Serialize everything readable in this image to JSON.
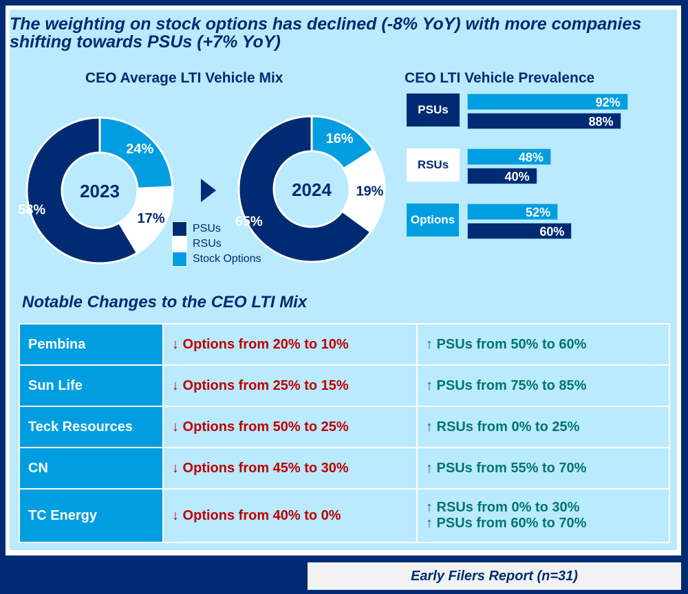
{
  "headline": "The weighting on stock options has declined (-8% YoY) with more companies shifting towards PSUs (+7% YoY)",
  "colors": {
    "psus": "#002b73",
    "rsus": "#ffffff",
    "options": "#009ee0",
    "background": "#b9eafd",
    "down": "#c00000",
    "up": "#00766b"
  },
  "chart_data": [
    {
      "type": "pie",
      "title": "CEO Average LTI Vehicle Mix",
      "center_label": "2023",
      "categories": [
        "Stock Options",
        "RSUs",
        "PSUs"
      ],
      "values": [
        24,
        17,
        58
      ],
      "labels": [
        "24%",
        "17%",
        "58%"
      ]
    },
    {
      "type": "pie",
      "title": "",
      "center_label": "2024",
      "categories": [
        "Stock Options",
        "RSUs",
        "PSUs"
      ],
      "values": [
        16,
        19,
        65
      ],
      "labels": [
        "16%",
        "19%",
        "65%"
      ]
    },
    {
      "type": "bar",
      "orientation": "horizontal",
      "title": "CEO LTI Vehicle Prevalence",
      "categories": [
        "PSUs",
        "RSUs",
        "Options"
      ],
      "series": [
        {
          "values": [
            92,
            48,
            52
          ],
          "labels": [
            "92%",
            "48%",
            "52%"
          ],
          "color": "#009ee0"
        },
        {
          "values": [
            88,
            40,
            60
          ],
          "labels": [
            "88%",
            "40%",
            "60%"
          ],
          "color": "#002b73"
        }
      ],
      "xlim": [
        0,
        100
      ]
    }
  ],
  "legend": [
    "PSUs",
    "RSUs",
    "Stock Options"
  ],
  "table": {
    "title": "Notable Changes to the CEO LTI Mix",
    "rows": [
      {
        "company": "Pembina",
        "down": "↓ Options from 20% to 10%",
        "up": [
          "↑ PSUs from 50% to 60%"
        ]
      },
      {
        "company": "Sun Life",
        "down": "↓ Options from 25% to 15%",
        "up": [
          "↑ PSUs from 75% to 85%"
        ]
      },
      {
        "company": "Teck Resources",
        "down": "↓ Options from 50% to 25%",
        "up": [
          "↑ RSUs from 0% to 25%"
        ]
      },
      {
        "company": "CN",
        "down": "↓ Options from 45% to 30%",
        "up": [
          "↑ PSUs from 55% to 70%"
        ]
      },
      {
        "company": "TC Energy",
        "down": "↓ Options from 40% to 0%",
        "up": [
          "↑ RSUs from 0% to 30%",
          "↑ PSUs from 60% to 70%"
        ]
      }
    ]
  },
  "footer": "Early Filers Report (n=31)"
}
